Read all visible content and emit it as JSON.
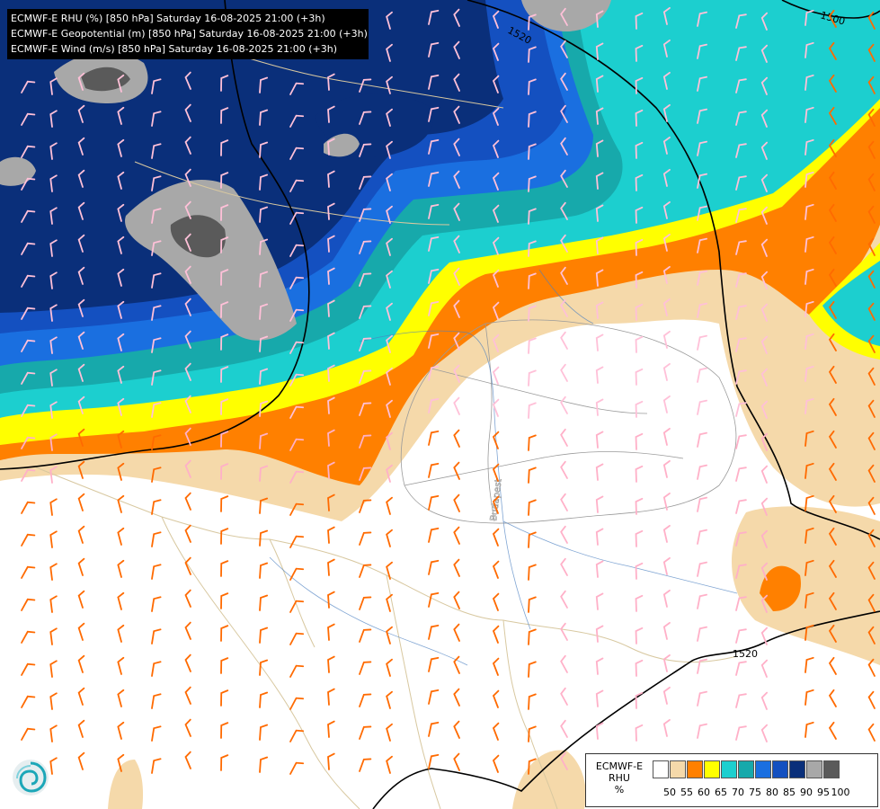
{
  "header": {
    "lines": [
      "ECMWF-E RHU (%) [850 hPa] Saturday 16-08-2025 21:00 (+3h)",
      "ECMWF-E Geopotential (m) [850 hPa] Saturday 16-08-2025 21:00 (+3h)",
      "ECMWF-E Wind (m/s) [850 hPa] Saturday 16-08-2025 21:00 (+3h)"
    ]
  },
  "contours": {
    "labels": [
      "1520",
      "1500",
      "1520"
    ]
  },
  "place_label": "Budapest",
  "legend": {
    "title": [
      "ECMWF-E",
      "RHU",
      "%"
    ],
    "colors": [
      "#ffffff",
      "#f5d9aa",
      "#ff8000",
      "#ffff00",
      "#1ccfcf",
      "#17a9ab",
      "#1a6fe0",
      "#1450c0",
      "#0a2f7a",
      "#a8a8a8",
      "#5a5a5a"
    ],
    "ticks": [
      "50",
      "55",
      "60",
      "65",
      "70",
      "75",
      "80",
      "85",
      "90",
      "95",
      "100"
    ]
  },
  "logo": "ecmwf-swirl-icon"
}
